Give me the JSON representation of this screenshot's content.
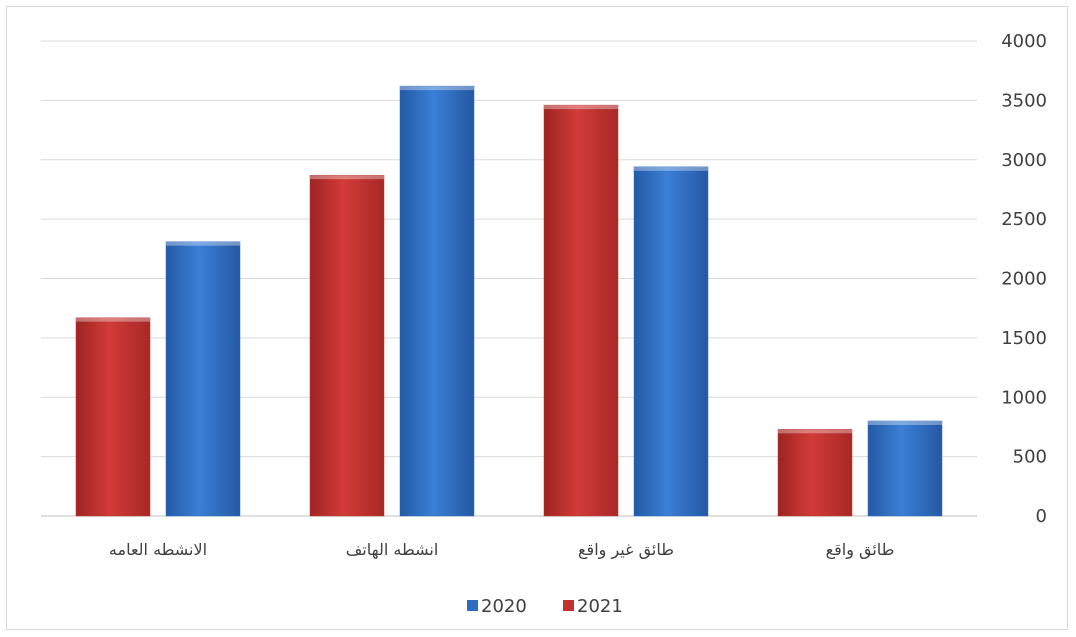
{
  "chart_data": {
    "type": "bar",
    "categories": [
      "الانشطه العامه",
      "انشطه الهاتف",
      "طائق غير واقع",
      "طائق واقع"
    ],
    "series": [
      {
        "name": "2021",
        "color": "#c0312f",
        "values": [
          1670,
          2870,
          3460,
          730
        ]
      },
      {
        "name": "2020",
        "color": "#2e6cc0",
        "values": [
          2310,
          3620,
          2940,
          800
        ]
      }
    ],
    "ylim": [
      0,
      4000
    ],
    "yticks": [
      "0",
      "500",
      "1000",
      "1500",
      "2000",
      "2500",
      "3000",
      "3500",
      "4000"
    ],
    "y_axis_side": "right",
    "grid": true,
    "legend": {
      "position": "bottom",
      "entries": [
        {
          "label": "2020",
          "color": "#2e6cc0"
        },
        {
          "label": "2021",
          "color": "#c0312f"
        }
      ]
    }
  }
}
